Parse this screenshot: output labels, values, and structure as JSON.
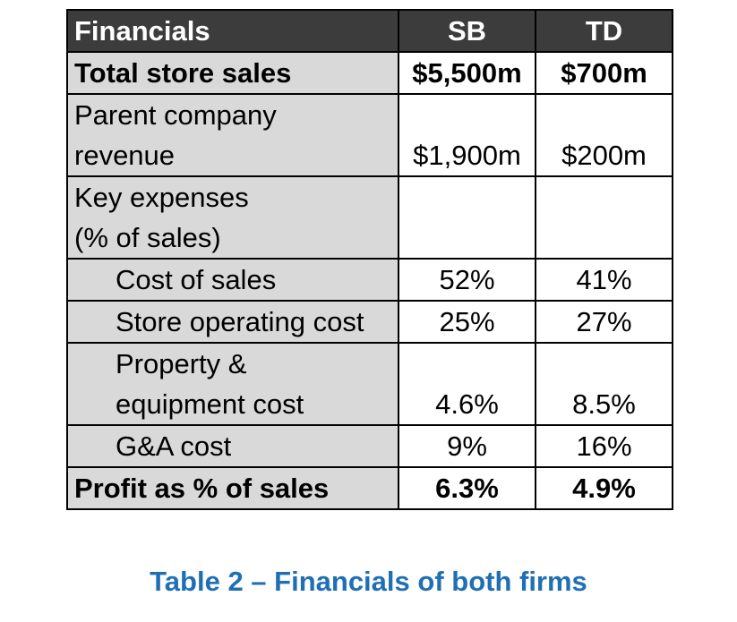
{
  "table": {
    "headers": [
      "Financials",
      "SB",
      "TD"
    ],
    "rows": [
      {
        "label_lines": [
          "Total store sales"
        ],
        "sb": "$5,500m",
        "td": "$700m"
      },
      {
        "label_lines": [
          "Parent company",
          "revenue"
        ],
        "sb": "$1,900m",
        "td": "$200m"
      },
      {
        "label_lines": [
          "Key expenses",
          "(% of sales)"
        ],
        "sb": "",
        "td": ""
      },
      {
        "label_lines": [
          "Cost of sales"
        ],
        "sb": "52%",
        "td": "41%"
      },
      {
        "label_lines": [
          "Store operating cost"
        ],
        "sb": "25%",
        "td": "27%"
      },
      {
        "label_lines": [
          "Property &",
          "equipment cost"
        ],
        "sb": "4.6%",
        "td": "8.5%"
      },
      {
        "label_lines": [
          "G&A cost"
        ],
        "sb": "9%",
        "td": "16%"
      },
      {
        "label_lines": [
          "Profit as % of sales"
        ],
        "sb": "6.3%",
        "td": "4.9%"
      }
    ]
  },
  "caption": "Table 2 – Financials of both firms",
  "colors": {
    "header_bg": "#3c3c3c",
    "header_text": "#ffffff",
    "label_bg": "#d9d9d9",
    "caption": "#1f6fb5"
  }
}
